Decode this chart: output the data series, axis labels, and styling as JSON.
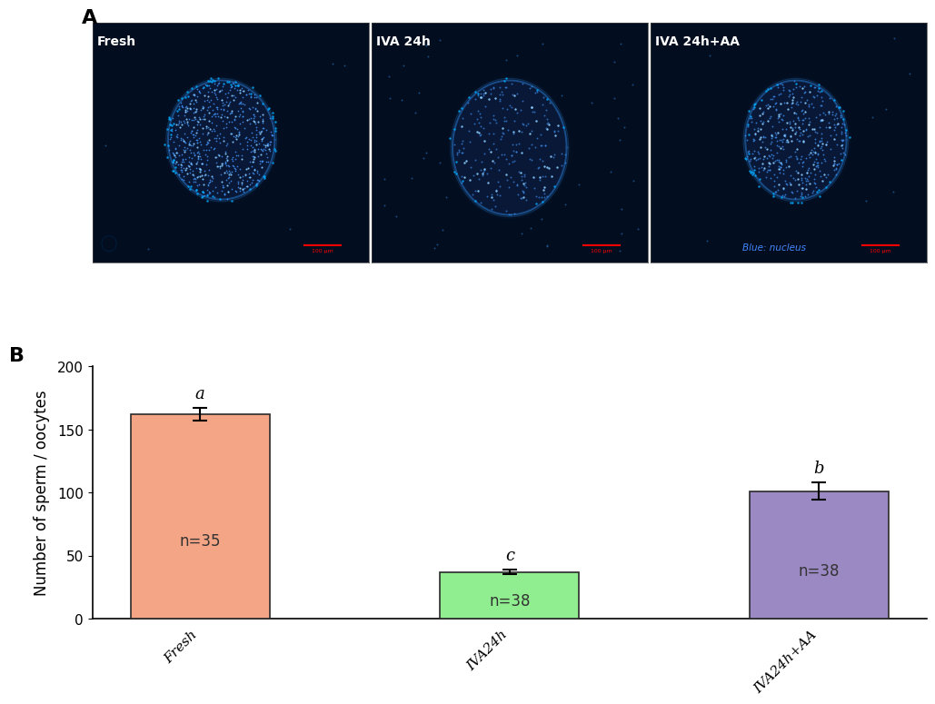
{
  "panel_B": {
    "categories": [
      "Fresh",
      "IVA24h",
      "IVA24h+AA"
    ],
    "values": [
      162,
      37,
      101
    ],
    "errors": [
      5,
      2,
      7
    ],
    "bar_colors": [
      "#F4A585",
      "#90EE90",
      "#9B89C4"
    ],
    "bar_edgecolors": [
      "#2a2a2a",
      "#2a2a2a",
      "#2a2a2a"
    ],
    "n_labels": [
      "n=35",
      "n=38",
      "n=38"
    ],
    "sig_letters": [
      "a",
      "c",
      "b"
    ],
    "ylabel": "Number of sperm / oocytes",
    "ylim": [
      0,
      200
    ],
    "yticks": [
      0,
      50,
      100,
      150,
      200
    ],
    "xlabel_labels": [
      "Fresh",
      "IVA24h",
      "IVA24h+AA"
    ],
    "letter_fontsize": 13,
    "n_label_fontsize": 12,
    "tick_fontsize": 11,
    "ylabel_fontsize": 12
  },
  "panel_A_label": "A",
  "panel_B_label": "B",
  "panel_images": {
    "titles": [
      "Fresh",
      "IVA 24h",
      "IVA 24h+AA"
    ],
    "blue_nucleus_text": "Blue: nucleus",
    "bg_color": "#020d1f"
  }
}
